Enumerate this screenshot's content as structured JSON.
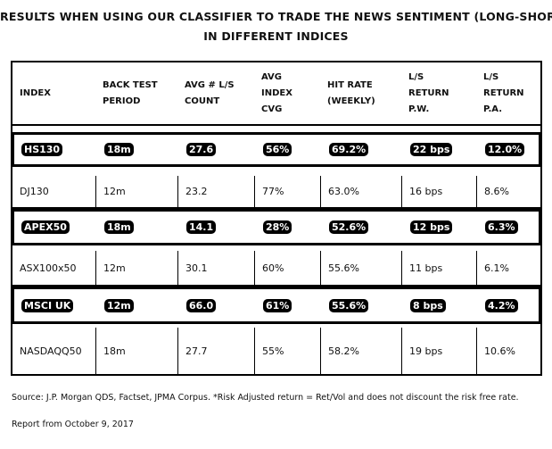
{
  "title": {
    "line1": "RESULTS WHEN USING OUR CLASSIFIER TO TRADE THE NEWS SENTIMENT (LONG-SHORT)",
    "line2": "IN DIFFERENT INDICES"
  },
  "table": {
    "headers": [
      [
        "INDEX"
      ],
      [
        "BACK TEST",
        "PERIOD"
      ],
      [
        "AVG # L/S",
        "COUNT"
      ],
      [
        "AVG",
        "INDEX",
        "CVG"
      ],
      [
        "HIT RATE",
        "(WEEKLY)"
      ],
      [
        "L/S",
        "RETURN",
        "P.W."
      ],
      [
        "L/S",
        "RETURN",
        "P.A."
      ]
    ],
    "rows": [
      {
        "highlighted": true,
        "cells": [
          "HS130",
          "18m",
          "27.6",
          "56%",
          "69.2%",
          "22 bps",
          "12.0%"
        ]
      },
      {
        "highlighted": false,
        "cells": [
          "DJ130",
          "12m",
          "23.2",
          "77%",
          "63.0%",
          "16 bps",
          "8.6%"
        ]
      },
      {
        "highlighted": true,
        "cells": [
          "APEX50",
          "18m",
          "14.1",
          "28%",
          "52.6%",
          "12 bps",
          "6.3%"
        ]
      },
      {
        "highlighted": false,
        "cells": [
          "ASX100x50",
          "12m",
          "30.1",
          "60%",
          "55.6%",
          "11 bps",
          "6.1%"
        ]
      },
      {
        "highlighted": true,
        "cells": [
          "MSCI UK",
          "12m",
          "66.0",
          "61%",
          "55.6%",
          "8 bps",
          "4.2%"
        ]
      },
      {
        "highlighted": false,
        "cells": [
          "NASDAQQ50",
          "18m",
          "27.7",
          "55%",
          "58.2%",
          "19 bps",
          "10.6%"
        ]
      }
    ]
  },
  "footer": {
    "source": "Source: J.P. Morgan QDS, Factset, JPMA Corpus. *Risk Adjusted return = Ret/Vol and does not discount the risk free rate.",
    "report": "Report from October 9, 2017"
  }
}
